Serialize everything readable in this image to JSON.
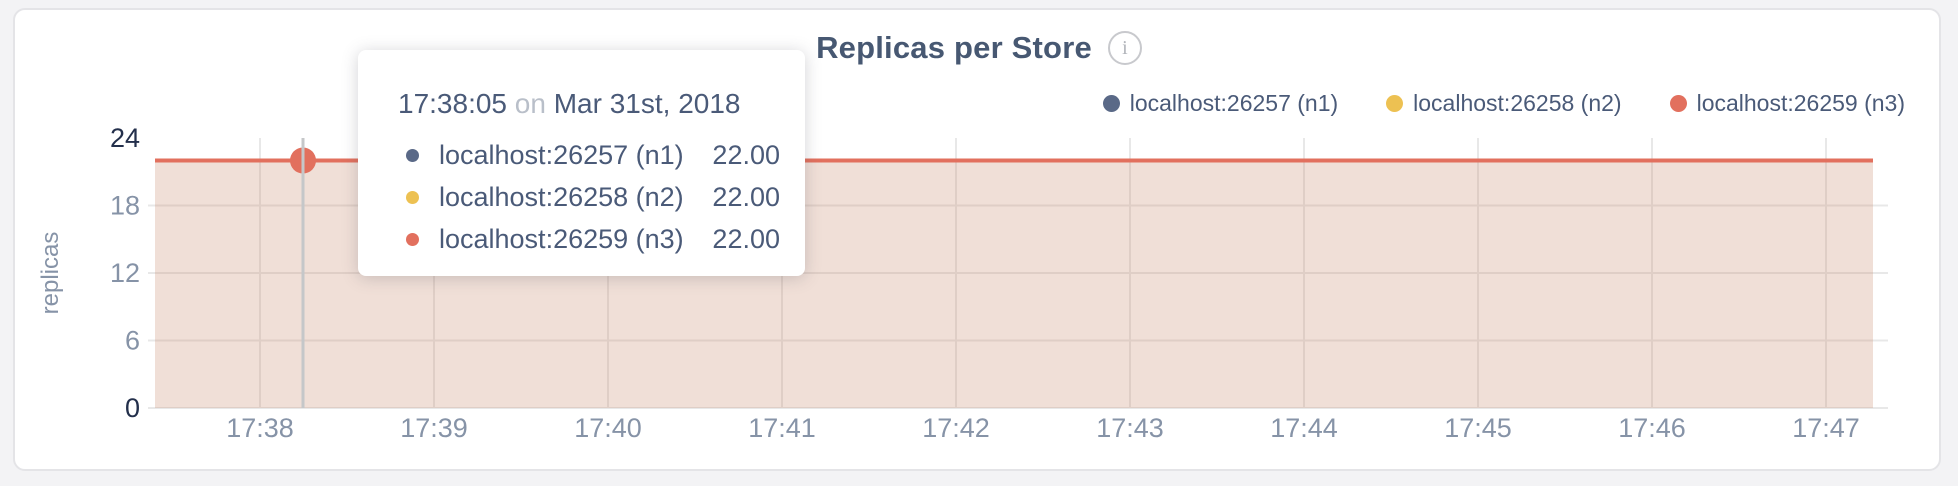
{
  "header": {
    "title": "Replicas per Store",
    "info_icon_glyph": "i"
  },
  "legend": {
    "items": [
      {
        "label": "localhost:26257 (n1)",
        "color": "#5a6987"
      },
      {
        "label": "localhost:26258 (n2)",
        "color": "#edc152"
      },
      {
        "label": "localhost:26259 (n3)",
        "color": "#e2705e"
      }
    ]
  },
  "tooltip": {
    "time": "17:38:05",
    "connector": "on",
    "date": "Mar 31st, 2018",
    "rows": [
      {
        "label": "localhost:26257 (n1)",
        "value": "22.00",
        "color": "#5a6987"
      },
      {
        "label": "localhost:26258 (n2)",
        "value": "22.00",
        "color": "#edc152"
      },
      {
        "label": "localhost:26259 (n3)",
        "value": "22.00",
        "color": "#e2705e"
      }
    ]
  },
  "chart_data": {
    "type": "area",
    "title": "Replicas per Store",
    "ylabel": "replicas",
    "ylim": [
      0,
      24
    ],
    "yticks": [
      0,
      6,
      12,
      18,
      24
    ],
    "xticklabels": [
      "17:38",
      "17:39",
      "17:40",
      "17:41",
      "17:42",
      "17:43",
      "17:44",
      "17:45",
      "17:46",
      "17:47"
    ],
    "series": [
      {
        "name": "localhost:26257 (n1)",
        "color": "#5a6987",
        "value": 22.0
      },
      {
        "name": "localhost:26258 (n2)",
        "color": "#edc152",
        "value": 22.0
      },
      {
        "name": "localhost:26259 (n3)",
        "color": "#e2705e",
        "value": 22.0
      }
    ],
    "hover": {
      "time": "17:38:05",
      "date": "Mar 31st, 2018",
      "value": 22.0
    },
    "legend_position": "top-right",
    "grid": true,
    "style": {
      "fill_color": "rgba(195,127,95,0.25)",
      "grid_color": "#e8e8e8",
      "hover_line_color": "#c5c7c9",
      "tick_color": "#8693a7",
      "tick_extreme_color": "#232f4b"
    }
  }
}
